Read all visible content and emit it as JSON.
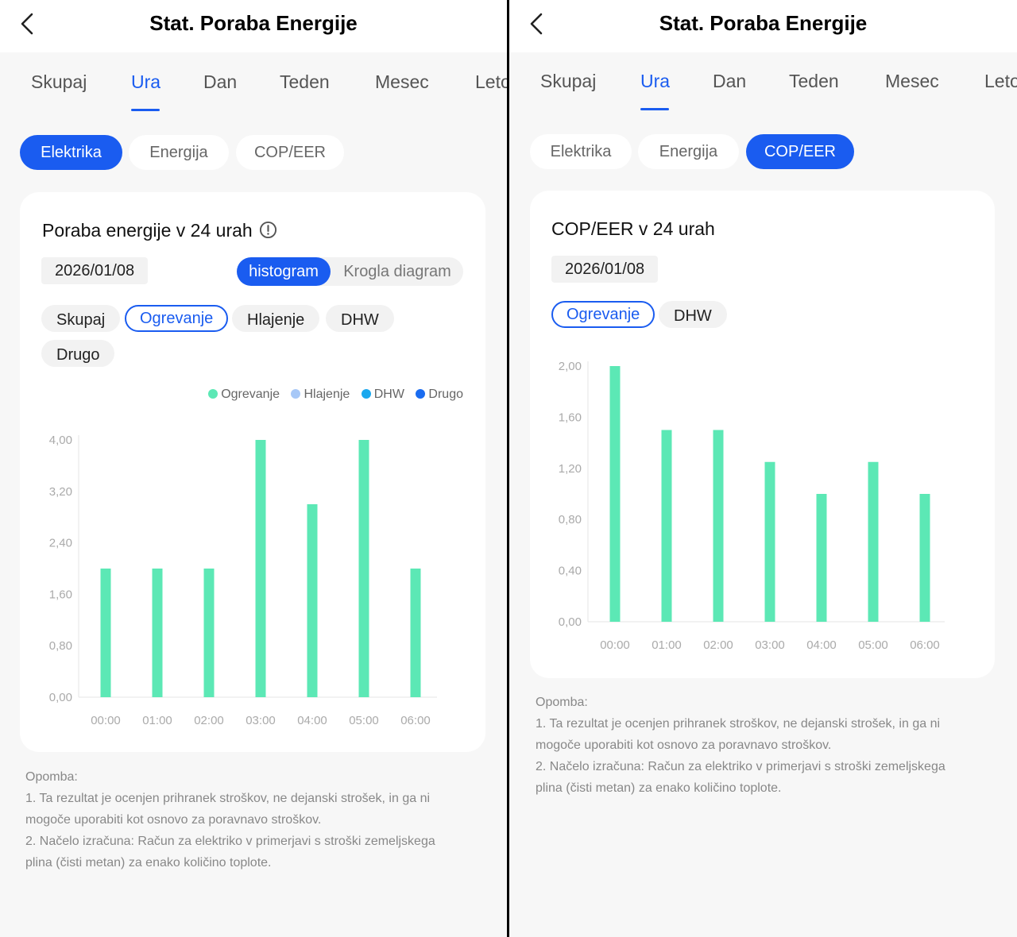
{
  "colors": {
    "accent": "#1a5cf0",
    "bar": "#5ce8b5",
    "legend_hlajenje": "#a7c8f7",
    "legend_dhw": "#1aa8ee",
    "legend_drugo": "#1a6cf0"
  },
  "icons": {
    "back": "chevron-left-icon",
    "info": "info-circle-icon"
  },
  "left": {
    "header": {
      "title": "Stat. Poraba Energije"
    },
    "tabs": [
      {
        "label": "Skupaj"
      },
      {
        "label": "Ura"
      },
      {
        "label": "Dan"
      },
      {
        "label": "Teden"
      },
      {
        "label": "Mesec"
      },
      {
        "label": "Leto"
      }
    ],
    "active_tab": "Ura",
    "type_pills": [
      {
        "label": "Elektrika"
      },
      {
        "label": "Energija"
      },
      {
        "label": "COP/EER"
      }
    ],
    "active_type": "Elektrika",
    "card": {
      "title": "Poraba energije v 24 urah",
      "date": "2026/01/08",
      "view_toggle": {
        "histogram": "histogram",
        "pie": "Krogla diagram",
        "active": "histogram"
      },
      "filters": [
        {
          "label": "Skupaj"
        },
        {
          "label": "Ogrevanje"
        },
        {
          "label": "Hlajenje"
        },
        {
          "label": "DHW"
        },
        {
          "label": "Drugo"
        }
      ],
      "active_filter": "Ogrevanje",
      "legend": [
        {
          "label": "Ogrevanje"
        },
        {
          "label": "Hlajenje"
        },
        {
          "label": "DHW"
        },
        {
          "label": "Drugo"
        }
      ]
    },
    "note": {
      "heading": "Opomba:",
      "line1a": "1. Ta rezultat je ocenjen prihranek stroškov, ne dejanski strošek, in ga ni",
      "line1b": "mogoče uporabiti kot osnovo za poravnavo stroškov.",
      "line2a": "2. Načelo izračuna: Račun za elektriko v primerjavi s stroški zemeljskega",
      "line2b": "plina (čisti metan) za enako količino toplote."
    }
  },
  "right": {
    "header": {
      "title": "Stat. Poraba Energije"
    },
    "tabs": [
      {
        "label": "Skupaj"
      },
      {
        "label": "Ura"
      },
      {
        "label": "Dan"
      },
      {
        "label": "Teden"
      },
      {
        "label": "Mesec"
      },
      {
        "label": "Leto"
      }
    ],
    "active_tab": "Ura",
    "type_pills": [
      {
        "label": "Elektrika"
      },
      {
        "label": "Energija"
      },
      {
        "label": "COP/EER"
      }
    ],
    "active_type": "COP/EER",
    "card": {
      "title": "COP/EER v 24 urah",
      "date": "2026/01/08",
      "filters": [
        {
          "label": "Ogrevanje"
        },
        {
          "label": "DHW"
        }
      ],
      "active_filter": "Ogrevanje"
    },
    "note": {
      "heading": "Opomba:",
      "line1a": "1. Ta rezultat je ocenjen prihranek stroškov, ne dejanski strošek, in ga ni",
      "line1b": "mogoče uporabiti kot osnovo za poravnavo stroškov.",
      "line2a": "2. Načelo izračuna: Račun za elektriko v primerjavi s stroški zemeljskega",
      "line2b": "plina (čisti metan) za enako količino toplote."
    }
  },
  "chart_data": [
    {
      "type": "bar",
      "title": "Poraba energije v 24 urah",
      "categories": [
        "00:00",
        "01:00",
        "02:00",
        "03:00",
        "04:00",
        "05:00",
        "06:00"
      ],
      "series": [
        {
          "name": "Ogrevanje",
          "values": [
            2.0,
            2.0,
            2.0,
            4.0,
            3.0,
            4.0,
            2.0
          ]
        }
      ],
      "yticks": [
        "0,00",
        "0,80",
        "1,60",
        "2,40",
        "3,20",
        "4,00"
      ],
      "ylim": [
        0,
        4
      ],
      "legend": [
        "Ogrevanje",
        "Hlajenje",
        "DHW",
        "Drugo"
      ],
      "legend_position": "top-right",
      "grid": false
    },
    {
      "type": "bar",
      "title": "COP/EER v 24 urah",
      "categories": [
        "00:00",
        "01:00",
        "02:00",
        "03:00",
        "04:00",
        "05:00",
        "06:00"
      ],
      "series": [
        {
          "values": [
            2.0,
            1.5,
            1.5,
            1.25,
            1.0,
            1.25,
            1.0
          ]
        }
      ],
      "yticks": [
        "0,00",
        "0,40",
        "0,80",
        "1,20",
        "1,60",
        "2,00"
      ],
      "ylim": [
        0,
        2
      ],
      "grid": false
    }
  ]
}
